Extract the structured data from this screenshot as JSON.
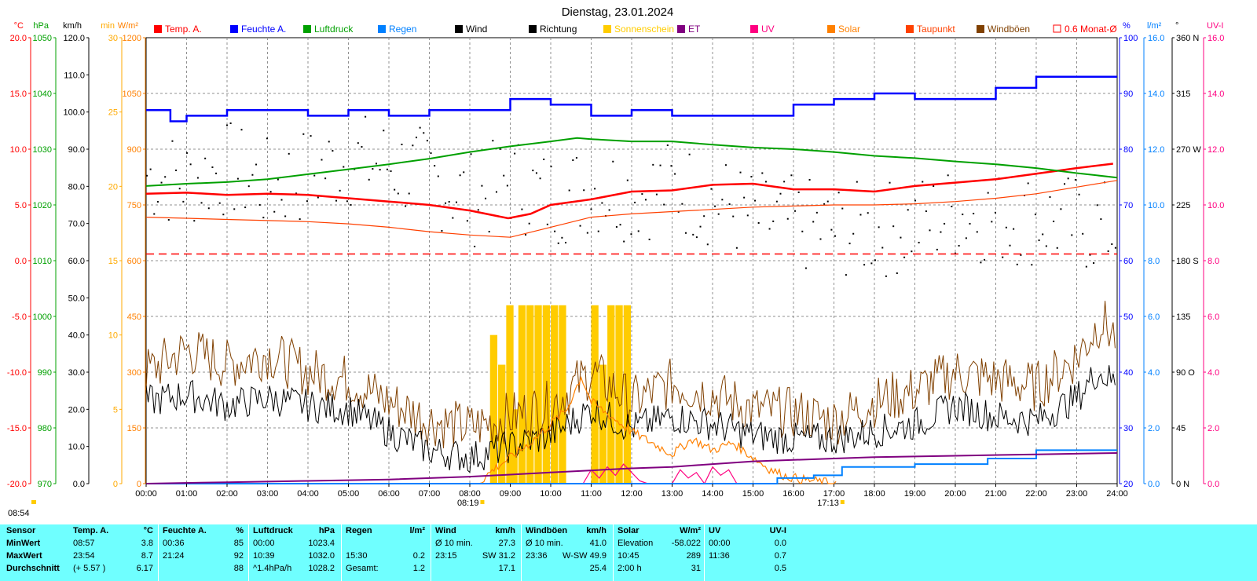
{
  "chart_data": {
    "type": "line",
    "title": "Dienstag, 23.01.2024",
    "x_labels": [
      "00:00",
      "01:00",
      "02:00",
      "03:00",
      "04:00",
      "05:00",
      "06:00",
      "07:00",
      "08:00",
      "09:00",
      "10:00",
      "11:00",
      "12:00",
      "13:00",
      "14:00",
      "15:00",
      "16:00",
      "17:00",
      "18:00",
      "19:00",
      "20:00",
      "21:00",
      "22:00",
      "23:00",
      "24:00"
    ],
    "grid": true,
    "axes_left": [
      {
        "unit": "°C",
        "color": "#ff0000",
        "range": [
          -20,
          20
        ],
        "ticks": [
          "20.0",
          "15.0",
          "10.0",
          "5.0",
          "0.0",
          "-5.0",
          "-10.0",
          "-15.0",
          "-20.0"
        ]
      },
      {
        "unit": "hPa",
        "color": "#00a000",
        "range": [
          970,
          1050
        ],
        "ticks": [
          "1050",
          "1040",
          "1030",
          "1020",
          "1010",
          "1000",
          "990",
          "980",
          "970"
        ]
      },
      {
        "unit": "km/h",
        "color": "#000000",
        "range": [
          0,
          120
        ],
        "ticks": [
          "120.0",
          "110.0",
          "100.0",
          "90.0",
          "80.0",
          "70.0",
          "60.0",
          "50.0",
          "40.0",
          "30.0",
          "20.0",
          "10.0",
          "0.0"
        ]
      },
      {
        "unit": "min",
        "color": "#ffaa00",
        "range": [
          0,
          30
        ],
        "ticks": [
          "30",
          "25",
          "20",
          "15",
          "10",
          "5",
          "0"
        ]
      },
      {
        "unit": "W/m²",
        "color": "#ff8000",
        "range": [
          0,
          1200
        ],
        "ticks": [
          "1200",
          "1050",
          "900",
          "750",
          "600",
          "450",
          "300",
          "150",
          "0"
        ]
      }
    ],
    "axes_right": [
      {
        "unit": "%",
        "color": "#0000ff",
        "range": [
          20,
          100
        ],
        "ticks": [
          "100",
          "90",
          "80",
          "70",
          "60",
          "50",
          "40",
          "30",
          "20"
        ]
      },
      {
        "unit": "l/m²",
        "color": "#0080ff",
        "range": [
          0,
          16
        ],
        "ticks": [
          "16.0",
          "14.0",
          "12.0",
          "10.0",
          "8.0",
          "6.0",
          "4.0",
          "2.0",
          "0.0"
        ]
      },
      {
        "unit": "°",
        "color": "#000000",
        "range": [
          0,
          360
        ],
        "ticks": [
          "360 N",
          "315",
          "270 W",
          "225",
          "180 S",
          "135",
          "90 O",
          "45",
          "0 N"
        ]
      },
      {
        "unit": "UV-I",
        "color": "#ff0080",
        "range": [
          0,
          16
        ],
        "ticks": [
          "16.0",
          "14.0",
          "12.0",
          "10.0",
          "8.0",
          "6.0",
          "4.0",
          "2.0",
          "0.0"
        ]
      }
    ],
    "legend": [
      {
        "name": "Temp. A.",
        "color": "#ff0000"
      },
      {
        "name": "Feuchte A.",
        "color": "#0000ff"
      },
      {
        "name": "Luftdruck",
        "color": "#00a000"
      },
      {
        "name": "Regen",
        "color": "#0080ff"
      },
      {
        "name": "Wind",
        "color": "#000000"
      },
      {
        "name": "Richtung",
        "color": "#000000"
      },
      {
        "name": "Sonnenschein",
        "color": "#ffcc00"
      },
      {
        "name": "ET",
        "color": "#800080"
      },
      {
        "name": "UV",
        "color": "#ff0080"
      },
      {
        "name": "Solar",
        "color": "#ff8000"
      },
      {
        "name": "Taupunkt",
        "color": "#ff4000"
      },
      {
        "name": "Windböen",
        "color": "#804000"
      },
      {
        "name": "0.6 Monat-Ø",
        "color": "#ff0000"
      }
    ],
    "series": [
      {
        "name": "Temp. A.",
        "unit": "°C",
        "x_hours": [
          0,
          1,
          2,
          3,
          4,
          5,
          6,
          7,
          8,
          8.95,
          9.5,
          10,
          11,
          12,
          13,
          14,
          15,
          16,
          17,
          18,
          19,
          20,
          21,
          22,
          23,
          23.9
        ],
        "values": [
          6.0,
          6.1,
          5.9,
          6.0,
          5.9,
          5.6,
          5.3,
          5.0,
          4.5,
          3.8,
          4.2,
          5.0,
          5.5,
          6.2,
          6.3,
          6.8,
          6.9,
          6.4,
          6.4,
          6.2,
          6.7,
          7.0,
          7.3,
          7.8,
          8.3,
          8.7
        ]
      },
      {
        "name": "Feuchte A.",
        "unit": "%",
        "x_hours": [
          0,
          0.6,
          1,
          2,
          3,
          4,
          5,
          6,
          7,
          8,
          9,
          10,
          11,
          12,
          13,
          14,
          15,
          16,
          17,
          18,
          19,
          20,
          21,
          22,
          23,
          24
        ],
        "values": [
          87,
          85,
          86,
          87,
          87,
          86,
          87,
          86,
          87,
          87,
          89,
          88,
          86,
          87,
          86,
          86,
          86,
          88,
          89,
          90,
          89,
          89,
          91,
          93,
          93,
          93
        ]
      },
      {
        "name": "Luftdruck",
        "unit": "hPa",
        "x_hours": [
          0,
          1,
          2,
          3,
          4,
          5,
          6,
          7,
          8,
          9,
          10,
          10.65,
          11,
          12,
          13,
          14,
          15,
          16,
          17,
          18,
          19,
          20,
          21,
          22,
          23,
          24
        ],
        "values": [
          1023.4,
          1023.8,
          1024.1,
          1024.6,
          1025.5,
          1026.4,
          1027.3,
          1028.3,
          1029.5,
          1030.5,
          1031.4,
          1032.0,
          1031.8,
          1031.4,
          1031.4,
          1030.8,
          1030.3,
          1030.0,
          1029.5,
          1028.8,
          1028.4,
          1027.8,
          1027.3,
          1026.6,
          1025.7,
          1024.9
        ]
      },
      {
        "name": "Taupunkt",
        "unit": "°C",
        "x_hours": [
          0,
          1,
          2,
          3,
          4,
          5,
          6,
          7,
          8,
          9,
          10,
          11,
          12,
          13,
          14,
          15,
          16,
          17,
          18,
          19,
          20,
          21,
          22,
          23,
          24
        ],
        "values": [
          3.9,
          3.8,
          3.7,
          3.6,
          3.5,
          3.3,
          3.0,
          2.6,
          2.3,
          2.1,
          3.0,
          3.9,
          4.2,
          4.4,
          4.6,
          4.8,
          4.9,
          5.0,
          5.0,
          5.1,
          5.3,
          5.6,
          6.0,
          6.6,
          7.2
        ]
      },
      {
        "name": "Wind",
        "unit": "km/h",
        "x_hours": [
          0,
          1,
          2,
          3,
          4,
          5,
          6,
          7,
          8,
          9,
          10,
          11,
          12,
          13,
          14,
          15,
          16,
          17,
          18,
          19,
          20,
          21,
          22,
          23,
          23.5,
          24
        ],
        "values": [
          22,
          24,
          21,
          23,
          21,
          20,
          14,
          9,
          7,
          10,
          13,
          20,
          15,
          18,
          16,
          13,
          12,
          12,
          14,
          16,
          21,
          18,
          17,
          23,
          30,
          27
        ]
      },
      {
        "name": "Windböen",
        "unit": "km/h",
        "x_hours": [
          0,
          1,
          2,
          3,
          4,
          5,
          6,
          7,
          8,
          9,
          10,
          11,
          12,
          13,
          14,
          15,
          16,
          17,
          18,
          19,
          20,
          21,
          22,
          23,
          23.6,
          24
        ],
        "values": [
          30,
          36,
          32,
          35,
          30,
          28,
          22,
          17,
          15,
          18,
          21,
          30,
          22,
          27,
          24,
          20,
          19,
          17,
          22,
          25,
          30,
          28,
          26,
          34,
          44,
          39
        ]
      },
      {
        "name": "Solar",
        "unit": "W/m²",
        "x_hours": [
          8.2,
          8.6,
          9,
          9.5,
          10,
          10.4,
          10.75,
          11,
          11.5,
          12,
          12.5,
          13,
          13.5,
          14,
          14.5,
          15,
          15.4,
          15.8,
          16.3,
          17.1
        ],
        "values": [
          0,
          40,
          70,
          110,
          160,
          200,
          289,
          220,
          180,
          140,
          110,
          80,
          120,
          90,
          110,
          70,
          40,
          20,
          10,
          0
        ]
      },
      {
        "name": "UV",
        "unit": "UV-I",
        "x_hours": [
          10.8,
          11,
          11.2,
          11.4,
          11.6,
          11.8,
          12,
          12.2,
          12.4,
          13,
          13.2,
          13.4,
          13.6,
          13.8,
          14,
          14.2,
          14.4,
          14.6
        ],
        "values": [
          0,
          0.5,
          0.2,
          0.6,
          0.3,
          0.7,
          0.4,
          0.1,
          0,
          0,
          0.5,
          0.2,
          0.4,
          0,
          0.6,
          0.3,
          0.5,
          0
        ]
      },
      {
        "name": "Regen",
        "unit": "l/m²",
        "x_hours": [
          0,
          15.5,
          15.6,
          16.5,
          17.2,
          18,
          19,
          20,
          20.8,
          21,
          22,
          23,
          24
        ],
        "values": [
          0,
          0,
          0.2,
          0.3,
          0.6,
          0.6,
          0.7,
          0.7,
          0.9,
          0.9,
          1.2,
          1.2,
          1.2
        ]
      },
      {
        "name": "ET",
        "unit": "l/m²",
        "x_hours": [
          0,
          2,
          4,
          6,
          8,
          10,
          12,
          13,
          14,
          15,
          16,
          17,
          18,
          20,
          22,
          24
        ],
        "values": [
          0,
          0.05,
          0.1,
          0.15,
          0.25,
          0.4,
          0.55,
          0.6,
          0.7,
          0.8,
          0.85,
          0.9,
          0.95,
          1.0,
          1.05,
          1.1
        ]
      },
      {
        "name": "Sonnenschein",
        "unit": "min",
        "x_hours": [
          8.5,
          8.7,
          8.9,
          9,
          9.2,
          9.4,
          9.6,
          9.8,
          10,
          10.2,
          11,
          11.2,
          11.4,
          11.6,
          11.8
        ],
        "values": [
          10,
          8,
          12,
          5,
          12,
          12,
          12,
          12,
          12,
          12,
          12,
          8,
          12,
          12,
          12
        ]
      },
      {
        "name": "Richtung",
        "unit": "°",
        "x_hours": [
          0,
          1,
          2,
          3,
          4,
          5,
          6,
          7,
          8,
          9,
          10,
          11,
          12,
          13,
          14,
          15,
          16,
          17,
          18,
          19,
          20,
          21,
          22,
          23,
          24
        ],
        "values": [
          250,
          245,
          255,
          240,
          250,
          262,
          258,
          248,
          230,
          245,
          230,
          240,
          235,
          240,
          230,
          215,
          210,
          205,
          205,
          210,
          220,
          215,
          215,
          210,
          205
        ]
      },
      {
        "name": "0.6 Monat-Ø",
        "unit": "°C",
        "x_hours": [
          0,
          24
        ],
        "values": [
          0.6,
          0.6
        ]
      }
    ],
    "sun_events": [
      {
        "label": "08:19",
        "hour": 8.32
      },
      {
        "label": "17:13",
        "hour": 17.22
      }
    ],
    "corner_time": "08:54"
  },
  "stats": {
    "header": {
      "sensor": "Sensor",
      "temp": "Temp. A.",
      "temp_unit": "°C",
      "hum": "Feuchte A.",
      "hum_unit": "%",
      "press": "Luftdruck",
      "press_unit": "hPa",
      "rain": "Regen",
      "rain_unit": "l/m²",
      "wind": "Wind",
      "wind_unit": "km/h",
      "gust": "Windböen",
      "gust_unit": "km/h",
      "solar": "Solar",
      "solar_unit": "W/m²",
      "uv": "UV",
      "uv_unit": "UV-I"
    },
    "rows": [
      {
        "label": "MinWert",
        "temp_t": "08:57",
        "temp_v": "3.8",
        "hum_t": "00:36",
        "hum_v": "85",
        "press_t": "00:00",
        "press_v": "1023.4",
        "rain_t": "",
        "rain_v": "",
        "wind_t": "Ø 10 min.",
        "wind_v": "27.3",
        "gust_t": "Ø 10 min.",
        "gust_v": "41.0",
        "solar_t": "Elevation",
        "solar_v": "-58.022",
        "uv_t": "00:00",
        "uv_v": "0.0"
      },
      {
        "label": "MaxWert",
        "temp_t": "23:54",
        "temp_v": "8.7",
        "hum_t": "21:24",
        "hum_v": "92",
        "press_t": "10:39",
        "press_v": "1032.0",
        "rain_t": "15:30",
        "rain_v": "0.2",
        "wind_t": "23:15",
        "wind_v": "SW 31.2",
        "gust_t": "23:36",
        "gust_v": "W-SW 49.9",
        "solar_t": "10:45",
        "solar_v": "289",
        "uv_t": "11:36",
        "uv_v": "0.7"
      },
      {
        "label": "Durchschnitt",
        "temp_t": "(+ 5.57 )",
        "temp_v": "6.17",
        "hum_t": "",
        "hum_v": "88",
        "press_t": "^1.4hPa/h",
        "press_v": "1028.2",
        "rain_t": "Gesamt:",
        "rain_v": "1.2",
        "wind_t": "",
        "wind_v": "17.1",
        "gust_t": "",
        "gust_v": "25.4",
        "solar_t": "2:00 h",
        "solar_v": "31",
        "uv_t": "",
        "uv_v": "0.5"
      }
    ]
  }
}
